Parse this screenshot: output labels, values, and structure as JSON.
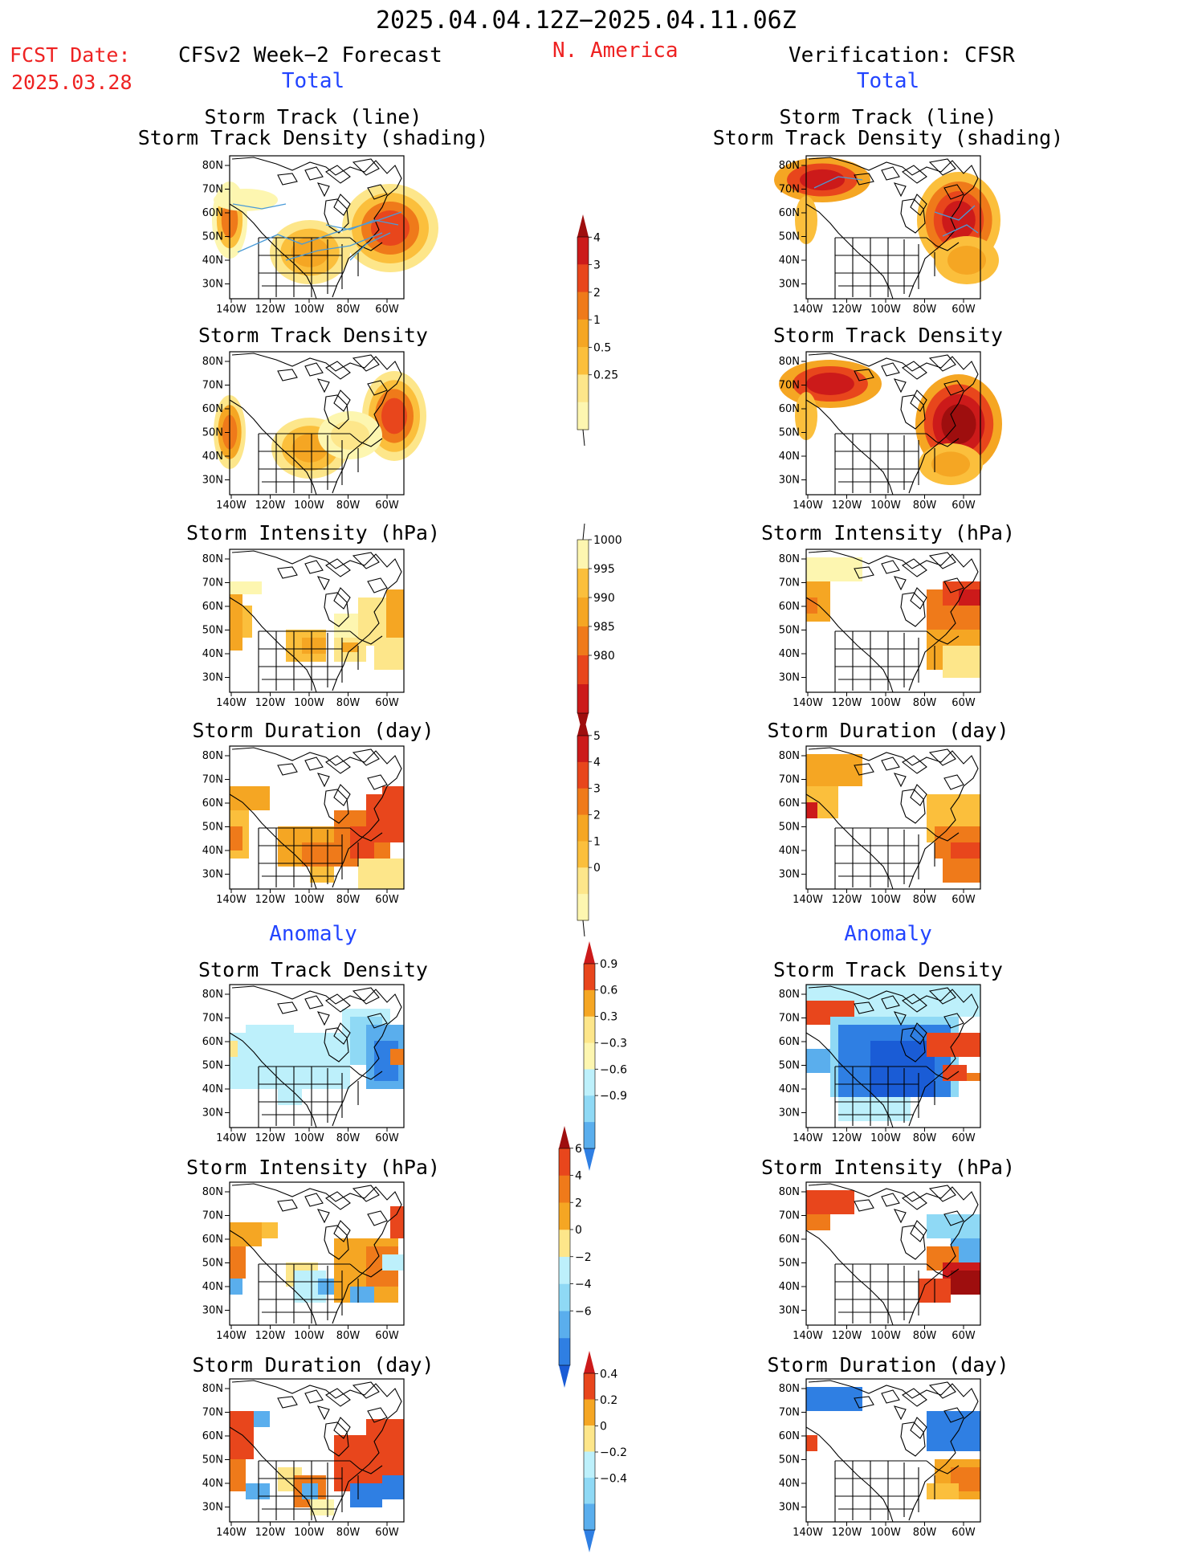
{
  "header": {
    "period": "2025.04.04.12Z−2025.04.11.06Z",
    "fcst_label": "FCST Date:",
    "fcst_date": "2025.03.28",
    "left_title": "CFSv2 Week−2 Forecast",
    "region": "N. America",
    "right_title": "Verification: CFSR"
  },
  "sections": {
    "total": "Total",
    "anomaly": "Anomaly"
  },
  "panel_titles": {
    "track_line_1": "Storm Track (line)",
    "track_line_2": "Storm Track Density (shading)",
    "density": "Storm Track Density",
    "intensity": "Storm Intensity (hPa)",
    "duration": "Storm Duration (day)"
  },
  "axes": {
    "lat_labels": [
      "80N",
      "70N",
      "60N",
      "50N",
      "40N",
      "30N"
    ],
    "lon_labels": [
      "140W",
      "120W",
      "100W",
      "80W",
      "60W"
    ]
  },
  "colorbars": {
    "density_total": [
      "4",
      "3",
      "2",
      "1",
      "0.5",
      "0.25"
    ],
    "intensity_total": [
      "1000",
      "995",
      "990",
      "985",
      "980"
    ],
    "duration_total": [
      "5",
      "4",
      "3",
      "2",
      "1",
      "0"
    ],
    "density_anom": [
      "0.9",
      "0.6",
      "0.3",
      "−0.3",
      "−0.6",
      "−0.9"
    ],
    "intensity_anom": [
      "6",
      "4",
      "2",
      "0",
      "−2",
      "−4",
      "−6"
    ],
    "duration_anom": [
      "0.4",
      "0.2",
      "0",
      "−0.2",
      "−0.4"
    ]
  },
  "palette": {
    "c1": "#fdf6b0",
    "c2": "#fde68a",
    "c3": "#fbbf3c",
    "c4": "#f5a623",
    "c5": "#ef7a1a",
    "c6": "#e8461c",
    "c7": "#cc1a1a",
    "c8": "#9e0e0e",
    "b1": "#bdf0fb",
    "b2": "#8fd9f5",
    "b3": "#5aaeed",
    "b4": "#2f7fe3",
    "b5": "#1a5cd6",
    "track": "#4a9bd8"
  }
}
